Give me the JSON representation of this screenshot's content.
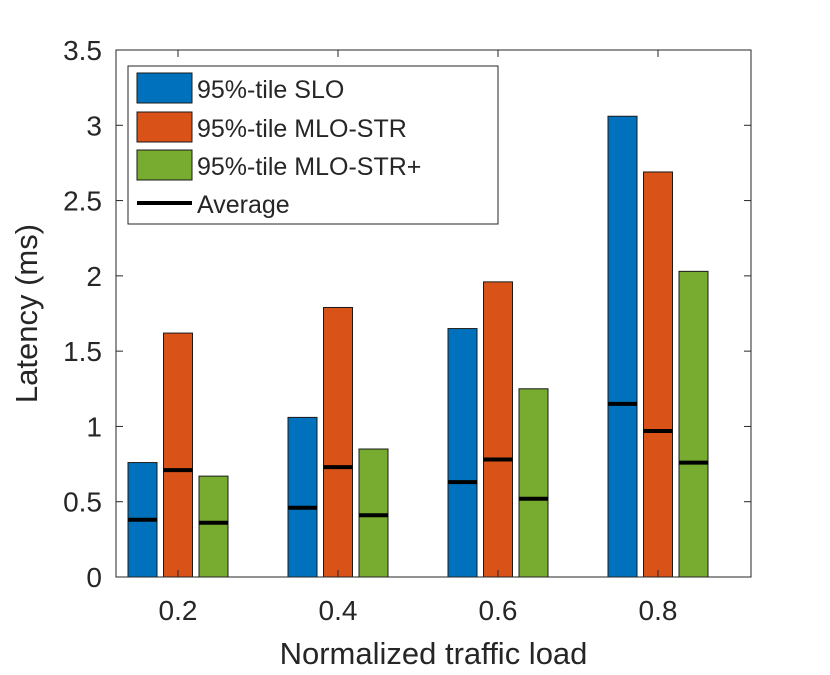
{
  "chart_data": {
    "type": "bar",
    "title": "",
    "xlabel": "Normalized traffic load",
    "ylabel": "Latency (ms)",
    "categories": [
      "0.2",
      "0.4",
      "0.6",
      "0.8"
    ],
    "ylim": [
      0,
      3.5
    ],
    "yticks": [
      "0",
      "0.5",
      "1",
      "1.5",
      "2",
      "2.5",
      "3",
      "3.5"
    ],
    "grid": false,
    "legend_position": "top-left",
    "series": [
      {
        "name": "95%-tile SLO",
        "color": "#0072BD",
        "values": [
          0.76,
          1.06,
          1.65,
          3.06
        ],
        "average": [
          0.38,
          0.46,
          0.63,
          1.15
        ]
      },
      {
        "name": "95%-tile MLO-STR",
        "color": "#D95319",
        "values": [
          1.62,
          1.79,
          1.96,
          2.69
        ],
        "average": [
          0.71,
          0.73,
          0.78,
          0.97
        ]
      },
      {
        "name": "95%-tile MLO-STR+",
        "color": "#77AC30",
        "values": [
          0.67,
          0.85,
          1.25,
          2.03
        ],
        "average": [
          0.36,
          0.41,
          0.52,
          0.76
        ]
      }
    ],
    "average_legend": "Average"
  }
}
